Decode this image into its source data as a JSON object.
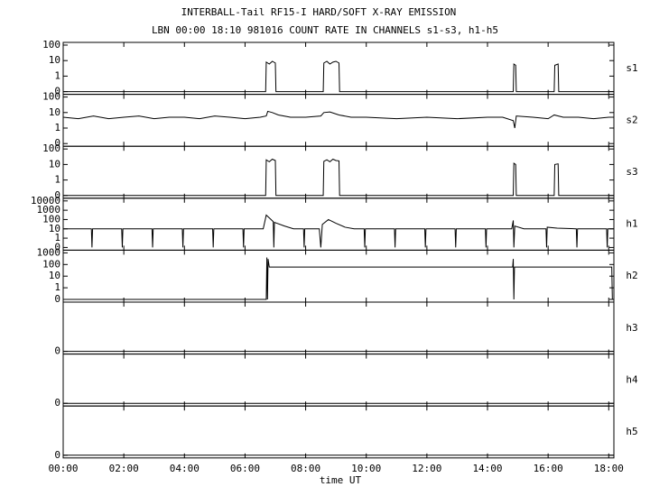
{
  "chart_data": [
    {
      "type": "line",
      "title": "INTERBALL-Tail RF15-I HARD/SOFT X-RAY EMISSION",
      "subtitle": "LBN 00:00 18:10 981016  COUNT RATE IN CHANNELS s1-s3, h1-h5",
      "label": "s1",
      "yscale": "log",
      "ylim": [
        0,
        100
      ],
      "yticks": [
        0,
        1,
        10,
        100
      ],
      "color": "#000000",
      "x": [
        0,
        6.68,
        6.7,
        6.8,
        6.9,
        7.0,
        7.02,
        8.58,
        8.6,
        8.7,
        8.8,
        8.9,
        9.0,
        9.1,
        9.12,
        14.85,
        14.87,
        14.93,
        14.95,
        16.2,
        16.22,
        16.33,
        16.35,
        18.17
      ],
      "values": [
        0,
        0,
        8,
        6,
        9,
        7,
        0,
        0,
        7,
        9,
        6,
        8,
        9,
        7,
        0,
        0,
        6,
        5,
        0,
        0,
        5,
        6,
        0,
        0
      ]
    },
    {
      "type": "line",
      "label": "s2",
      "yscale": "log",
      "ylim": [
        0,
        100
      ],
      "yticks": [
        0,
        1,
        10,
        100
      ],
      "color": "#000000",
      "x": [
        0,
        0.5,
        1,
        1.5,
        2,
        2.5,
        3,
        3.5,
        4,
        4.5,
        5,
        5.5,
        6,
        6.5,
        6.7,
        6.75,
        6.9,
        7.1,
        7.5,
        8,
        8.5,
        8.6,
        8.8,
        9.1,
        9.5,
        10,
        11,
        12,
        13,
        14,
        14.5,
        14.85,
        14.9,
        14.95,
        15.5,
        16,
        16.2,
        16.5,
        17,
        17.5,
        18,
        18.17
      ],
      "values": [
        5,
        4,
        6,
        4,
        5,
        6,
        4,
        5,
        5,
        4,
        6,
        5,
        4,
        5,
        6,
        12,
        10,
        7,
        5,
        5,
        6,
        10,
        11,
        7,
        5,
        5,
        4,
        5,
        4,
        5,
        5,
        3,
        1,
        6,
        5,
        4,
        7,
        5,
        5,
        4,
        5,
        5
      ]
    },
    {
      "type": "line",
      "label": "s3",
      "yscale": "log",
      "ylim": [
        0,
        100
      ],
      "yticks": [
        0,
        1,
        10,
        100
      ],
      "color": "#000000",
      "x": [
        0,
        6.68,
        6.7,
        6.8,
        6.9,
        7.0,
        7.02,
        8.58,
        8.6,
        8.7,
        8.8,
        8.9,
        9.0,
        9.1,
        9.12,
        14.85,
        14.87,
        14.93,
        14.95,
        16.2,
        16.22,
        16.33,
        16.35,
        18.17
      ],
      "values": [
        0,
        0,
        20,
        15,
        22,
        18,
        0,
        0,
        16,
        20,
        15,
        22,
        18,
        17,
        0,
        0,
        12,
        10,
        0,
        0,
        10,
        11,
        0,
        0
      ]
    },
    {
      "type": "line",
      "label": "h1",
      "yscale": "log",
      "ylim": [
        0,
        10000
      ],
      "yticks": [
        0,
        1,
        10,
        100,
        1000,
        10000
      ],
      "color": "#000000",
      "x": [
        0,
        0.93,
        0.95,
        0.97,
        1.93,
        1.95,
        1.97,
        2.93,
        2.95,
        2.97,
        3.93,
        3.95,
        3.97,
        4.93,
        4.95,
        4.97,
        5.93,
        5.95,
        5.97,
        6.6,
        6.7,
        6.8,
        6.93,
        6.95,
        6.97,
        7.3,
        7.6,
        7.93,
        7.95,
        7.97,
        8.45,
        8.5,
        8.55,
        8.75,
        9.0,
        9.3,
        9.6,
        9.93,
        9.95,
        9.97,
        10.93,
        10.95,
        10.97,
        11.93,
        11.95,
        11.97,
        12.93,
        12.95,
        12.97,
        13.93,
        13.95,
        13.97,
        14.8,
        14.85,
        14.87,
        14.9,
        15.2,
        15.93,
        15.95,
        15.97,
        16.3,
        16.93,
        16.95,
        16.97,
        17.93,
        17.95,
        17.97,
        18.17
      ],
      "values": [
        10,
        10,
        0,
        10,
        10,
        0,
        10,
        10,
        0,
        10,
        10,
        0,
        10,
        10,
        0,
        10,
        10,
        0,
        10,
        10,
        300,
        150,
        60,
        0,
        50,
        20,
        10,
        10,
        0,
        10,
        10,
        0,
        30,
        100,
        40,
        15,
        10,
        10,
        0,
        10,
        10,
        0,
        10,
        10,
        0,
        10,
        10,
        0,
        10,
        10,
        0,
        10,
        10,
        80,
        0,
        20,
        10,
        10,
        0,
        15,
        12,
        10,
        0,
        10,
        10,
        0,
        10,
        10
      ]
    },
    {
      "type": "line",
      "label": "h2",
      "yscale": "log",
      "ylim": [
        0,
        1000
      ],
      "yticks": [
        0,
        1,
        10,
        100,
        1000
      ],
      "color": "#000000",
      "x": [
        0,
        6.7,
        6.72,
        6.74,
        6.76,
        6.8,
        14.83,
        14.85,
        14.87,
        14.89,
        18.1,
        18.12,
        18.17
      ],
      "values": [
        0,
        0,
        400,
        0,
        300,
        60,
        60,
        300,
        0,
        60,
        60,
        0,
        0
      ]
    },
    {
      "type": "line",
      "label": "h3",
      "yscale": "log",
      "ylim": [
        0,
        1
      ],
      "yticks": [
        0
      ],
      "color": "#000000",
      "x": [
        0,
        18.17
      ],
      "values": [
        0,
        0
      ]
    },
    {
      "type": "line",
      "label": "h4",
      "yscale": "log",
      "ylim": [
        0,
        1
      ],
      "yticks": [
        0
      ],
      "color": "#000000",
      "x": [
        0,
        18.17
      ],
      "values": [
        0,
        0
      ]
    },
    {
      "type": "line",
      "label": "h5",
      "yscale": "log",
      "ylim": [
        0,
        1
      ],
      "yticks": [
        0
      ],
      "color": "#000000",
      "x": [
        0,
        18.17
      ],
      "values": [
        0,
        0
      ],
      "xlabel": "time UT",
      "xlim": [
        0,
        18.17
      ],
      "xticks": [
        {
          "value": 0,
          "label": "00:00"
        },
        {
          "value": 2,
          "label": "02:00"
        },
        {
          "value": 4,
          "label": "04:00"
        },
        {
          "value": 6,
          "label": "06:00"
        },
        {
          "value": 8,
          "label": "08:00"
        },
        {
          "value": 10,
          "label": "10:00"
        },
        {
          "value": 12,
          "label": "12:00"
        },
        {
          "value": 14,
          "label": "14:00"
        },
        {
          "value": 16,
          "label": "16:00"
        },
        {
          "value": 18,
          "label": "18:00"
        }
      ]
    }
  ]
}
